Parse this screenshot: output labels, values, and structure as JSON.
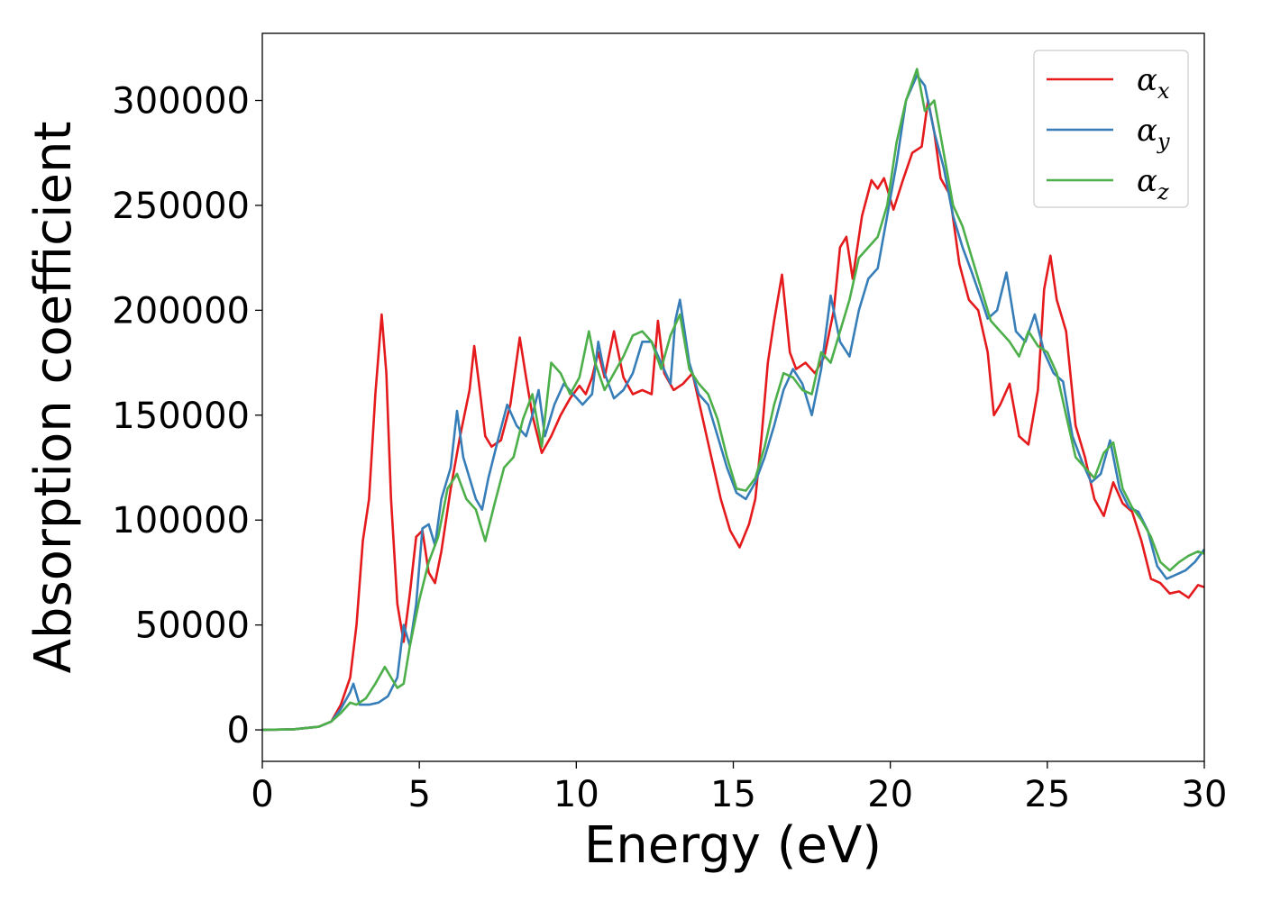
{
  "chart_data": {
    "type": "line",
    "title": "",
    "xlabel": "Energy (eV)",
    "ylabel": "Absorption coefficient",
    "xlim": [
      0,
      30
    ],
    "ylim": [
      -15000,
      332000
    ],
    "xticks": [
      0,
      5,
      10,
      15,
      20,
      25,
      30
    ],
    "xtick_labels": [
      "0",
      "5",
      "10",
      "15",
      "20",
      "25",
      "30"
    ],
    "yticks": [
      0,
      50000,
      100000,
      150000,
      200000,
      250000,
      300000
    ],
    "ytick_labels": [
      "0",
      "50000",
      "100000",
      "150000",
      "200000",
      "250000",
      "300000"
    ],
    "grid": false,
    "legend_position": "top-right",
    "series": [
      {
        "name": "α",
        "subscript": "x",
        "color": "#e41a1c",
        "x": [
          0,
          1,
          1.8,
          2.2,
          2.5,
          2.8,
          3.0,
          3.2,
          3.4,
          3.6,
          3.8,
          3.95,
          4.1,
          4.3,
          4.5,
          4.7,
          4.9,
          5.1,
          5.3,
          5.5,
          5.7,
          6.0,
          6.3,
          6.6,
          6.75,
          6.9,
          7.1,
          7.3,
          7.6,
          7.9,
          8.2,
          8.4,
          8.6,
          8.9,
          9.2,
          9.5,
          9.8,
          10.1,
          10.3,
          10.5,
          10.7,
          10.9,
          11.2,
          11.5,
          11.8,
          12.1,
          12.4,
          12.6,
          12.8,
          13.1,
          13.4,
          13.7,
          14.0,
          14.3,
          14.6,
          14.9,
          15.2,
          15.5,
          15.7,
          15.9,
          16.1,
          16.3,
          16.55,
          16.8,
          17.0,
          17.3,
          17.6,
          17.9,
          18.2,
          18.4,
          18.6,
          18.8,
          19.1,
          19.4,
          19.6,
          19.8,
          20.1,
          20.4,
          20.7,
          21.0,
          21.2,
          21.4,
          21.6,
          21.9,
          22.2,
          22.5,
          22.8,
          23.1,
          23.3,
          23.5,
          23.8,
          24.1,
          24.4,
          24.7,
          24.9,
          25.1,
          25.3,
          25.6,
          25.9,
          26.2,
          26.5,
          26.8,
          27.1,
          27.4,
          27.7,
          28.0,
          28.3,
          28.6,
          28.9,
          29.2,
          29.5,
          29.8,
          30
        ],
        "values": [
          0,
          300,
          1500,
          4000,
          12000,
          25000,
          50000,
          90000,
          110000,
          160000,
          198000,
          170000,
          110000,
          60000,
          42000,
          65000,
          92000,
          95000,
          75000,
          70000,
          85000,
          115000,
          140000,
          162000,
          183000,
          165000,
          140000,
          135000,
          138000,
          155000,
          187000,
          168000,
          150000,
          132000,
          140000,
          150000,
          158000,
          164000,
          160000,
          168000,
          180000,
          168000,
          190000,
          168000,
          160000,
          162000,
          160000,
          195000,
          170000,
          162000,
          165000,
          170000,
          150000,
          130000,
          110000,
          95000,
          87000,
          98000,
          110000,
          140000,
          175000,
          195000,
          217000,
          180000,
          172000,
          175000,
          170000,
          178000,
          200000,
          230000,
          235000,
          215000,
          245000,
          262000,
          258000,
          263000,
          248000,
          262000,
          275000,
          278000,
          300000,
          285000,
          263000,
          255000,
          222000,
          205000,
          200000,
          180000,
          150000,
          155000,
          165000,
          140000,
          136000,
          162000,
          210000,
          226000,
          205000,
          190000,
          145000,
          130000,
          110000,
          102000,
          118000,
          108000,
          104000,
          90000,
          72000,
          70000,
          65000,
          66000,
          63000,
          69000,
          68000
        ],
        "labels": []
      },
      {
        "name": "α",
        "subscript": "y",
        "color": "#377eb8",
        "x": [
          0,
          1,
          1.8,
          2.2,
          2.5,
          2.8,
          2.9,
          3.1,
          3.4,
          3.7,
          4.0,
          4.3,
          4.5,
          4.7,
          4.9,
          5.1,
          5.3,
          5.5,
          5.7,
          6.0,
          6.2,
          6.4,
          6.6,
          6.8,
          7.0,
          7.2,
          7.5,
          7.8,
          8.1,
          8.4,
          8.6,
          8.8,
          9.0,
          9.3,
          9.6,
          9.9,
          10.2,
          10.5,
          10.7,
          10.9,
          11.2,
          11.5,
          11.8,
          12.1,
          12.4,
          12.7,
          13.0,
          13.15,
          13.3,
          13.6,
          13.9,
          14.2,
          14.5,
          14.8,
          15.1,
          15.4,
          15.7,
          16.0,
          16.3,
          16.6,
          16.9,
          17.2,
          17.5,
          17.8,
          18.1,
          18.4,
          18.7,
          19.0,
          19.3,
          19.6,
          19.9,
          20.2,
          20.5,
          20.85,
          21.1,
          21.4,
          21.7,
          22.0,
          22.3,
          22.6,
          22.9,
          23.1,
          23.4,
          23.7,
          24.0,
          24.3,
          24.6,
          24.9,
          25.2,
          25.5,
          25.8,
          26.1,
          26.4,
          26.7,
          27.0,
          27.3,
          27.6,
          27.9,
          28.2,
          28.5,
          28.8,
          29.1,
          29.4,
          29.7,
          30
        ],
        "values": [
          0,
          300,
          1500,
          4000,
          10000,
          18000,
          22000,
          12000,
          12000,
          13000,
          16000,
          25000,
          50000,
          40000,
          60000,
          96000,
          98000,
          88000,
          110000,
          125000,
          152000,
          130000,
          120000,
          110000,
          105000,
          120000,
          138000,
          155000,
          145000,
          140000,
          150000,
          162000,
          140000,
          155000,
          165000,
          160000,
          155000,
          160000,
          185000,
          170000,
          158000,
          162000,
          170000,
          185000,
          185000,
          175000,
          165000,
          195000,
          205000,
          175000,
          160000,
          155000,
          140000,
          125000,
          113000,
          110000,
          118000,
          130000,
          145000,
          162000,
          172000,
          165000,
          150000,
          172000,
          207000,
          185000,
          178000,
          200000,
          215000,
          220000,
          245000,
          270000,
          300000,
          312000,
          307000,
          285000,
          268000,
          245000,
          230000,
          218000,
          205000,
          196000,
          200000,
          218000,
          190000,
          185000,
          198000,
          180000,
          170000,
          166000,
          140000,
          128000,
          118000,
          122000,
          138000,
          115000,
          106000,
          104000,
          95000,
          78000,
          72000,
          74000,
          76000,
          80000,
          86000
        ],
        "labels": []
      },
      {
        "name": "α",
        "subscript": "z",
        "color": "#4daf4a",
        "x": [
          0,
          1,
          1.8,
          2.2,
          2.5,
          2.8,
          3.0,
          3.3,
          3.6,
          3.9,
          4.1,
          4.3,
          4.5,
          4.7,
          5.0,
          5.3,
          5.6,
          5.9,
          6.2,
          6.5,
          6.8,
          7.1,
          7.4,
          7.7,
          8.0,
          8.3,
          8.6,
          8.9,
          9.2,
          9.5,
          9.8,
          10.1,
          10.4,
          10.6,
          10.9,
          11.2,
          11.5,
          11.8,
          12.1,
          12.4,
          12.7,
          13.0,
          13.3,
          13.6,
          13.9,
          14.2,
          14.5,
          14.8,
          15.1,
          15.4,
          15.7,
          16.0,
          16.3,
          16.6,
          16.9,
          17.2,
          17.5,
          17.8,
          18.1,
          18.4,
          18.7,
          19.0,
          19.3,
          19.6,
          19.9,
          20.2,
          20.5,
          20.85,
          21.1,
          21.4,
          21.7,
          22.0,
          22.3,
          22.6,
          22.9,
          23.2,
          23.5,
          23.8,
          24.1,
          24.4,
          24.7,
          25.0,
          25.3,
          25.6,
          25.9,
          26.2,
          26.5,
          26.8,
          27.1,
          27.4,
          27.7,
          28.0,
          28.3,
          28.6,
          28.9,
          29.2,
          29.5,
          29.8,
          30
        ],
        "values": [
          0,
          300,
          1500,
          4000,
          8000,
          13000,
          12000,
          15000,
          22000,
          30000,
          25000,
          20000,
          22000,
          40000,
          62000,
          80000,
          92000,
          115000,
          122000,
          110000,
          105000,
          90000,
          108000,
          125000,
          130000,
          148000,
          160000,
          135000,
          175000,
          170000,
          160000,
          168000,
          190000,
          175000,
          162000,
          170000,
          178000,
          188000,
          190000,
          185000,
          172000,
          188000,
          198000,
          172000,
          165000,
          160000,
          148000,
          130000,
          115000,
          114000,
          120000,
          135000,
          155000,
          170000,
          168000,
          162000,
          160000,
          180000,
          175000,
          190000,
          205000,
          225000,
          230000,
          235000,
          250000,
          280000,
          300000,
          315000,
          295000,
          300000,
          275000,
          250000,
          240000,
          225000,
          210000,
          195000,
          190000,
          185000,
          178000,
          190000,
          183000,
          180000,
          170000,
          150000,
          130000,
          125000,
          120000,
          132000,
          137000,
          115000,
          106000,
          100000,
          92000,
          80000,
          76000,
          80000,
          83000,
          85000,
          84000
        ],
        "labels": []
      }
    ]
  }
}
